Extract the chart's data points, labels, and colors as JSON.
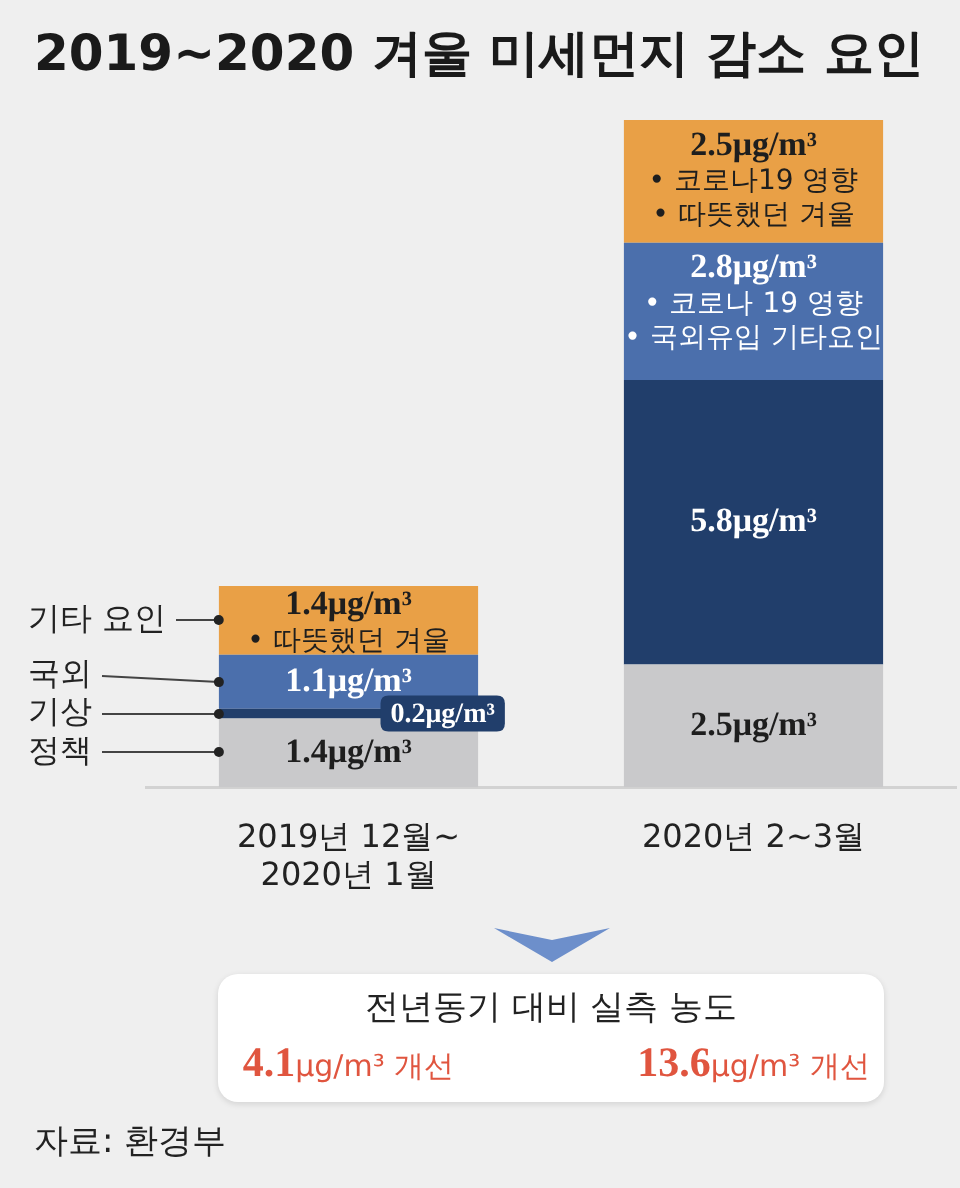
{
  "chart_data": {
    "type": "bar",
    "title": "2019~2020 겨울 미세먼지 감소 요인",
    "categories": [
      "2019년 12월~ 2020년 1월",
      "2020년 2~3월"
    ],
    "stacked": true,
    "tick_labels": "x",
    "series": [
      {
        "name": "정책",
        "color": "#c9c9cb",
        "values": [
          1.4,
          2.5
        ],
        "value_labels": [
          "1.4μg/m³",
          "2.5μg/m³"
        ]
      },
      {
        "name": "기상",
        "color": "#213e6b",
        "values": [
          0.2,
          5.8
        ],
        "value_labels": [
          "0.2μg/m³",
          "5.8μg/m³"
        ]
      },
      {
        "name": "국외",
        "color": "#4b6fac",
        "values": [
          1.1,
          2.8
        ],
        "value_labels": [
          "1.1μg/m³",
          "2.8μg/m³"
        ]
      },
      {
        "name": "기타 요인",
        "color": "#e9a046",
        "values": [
          1.4,
          2.5
        ],
        "value_labels": [
          "1.4μg/m³",
          "2.5μg/m³"
        ]
      }
    ],
    "annotations": [
      "전년동기 대비 실측 농도",
      "4.1μg/m³ 개선",
      "13.6μg/m³ 개선",
      {
        "text": "• 따뜻했던 겨울",
        "x": "2019년 12월~ 2020년 1월",
        "y": 4.1
      },
      {
        "text": "• 코로나19 영향",
        "x": "2020년 2~3월",
        "y": 13.6
      },
      {
        "text": "• 따뜻했던 겨울",
        "x": "2020년 2~3월",
        "y": 13.6
      },
      {
        "text": "• 코로나 19 영향",
        "x": "2020년 2~3월",
        "y": 11.1
      },
      {
        "text": "• 국외유입 기타요인",
        "x": "2020년 2~3월",
        "y": 11.1
      },
      "자료: 환경부"
    ]
  }
}
